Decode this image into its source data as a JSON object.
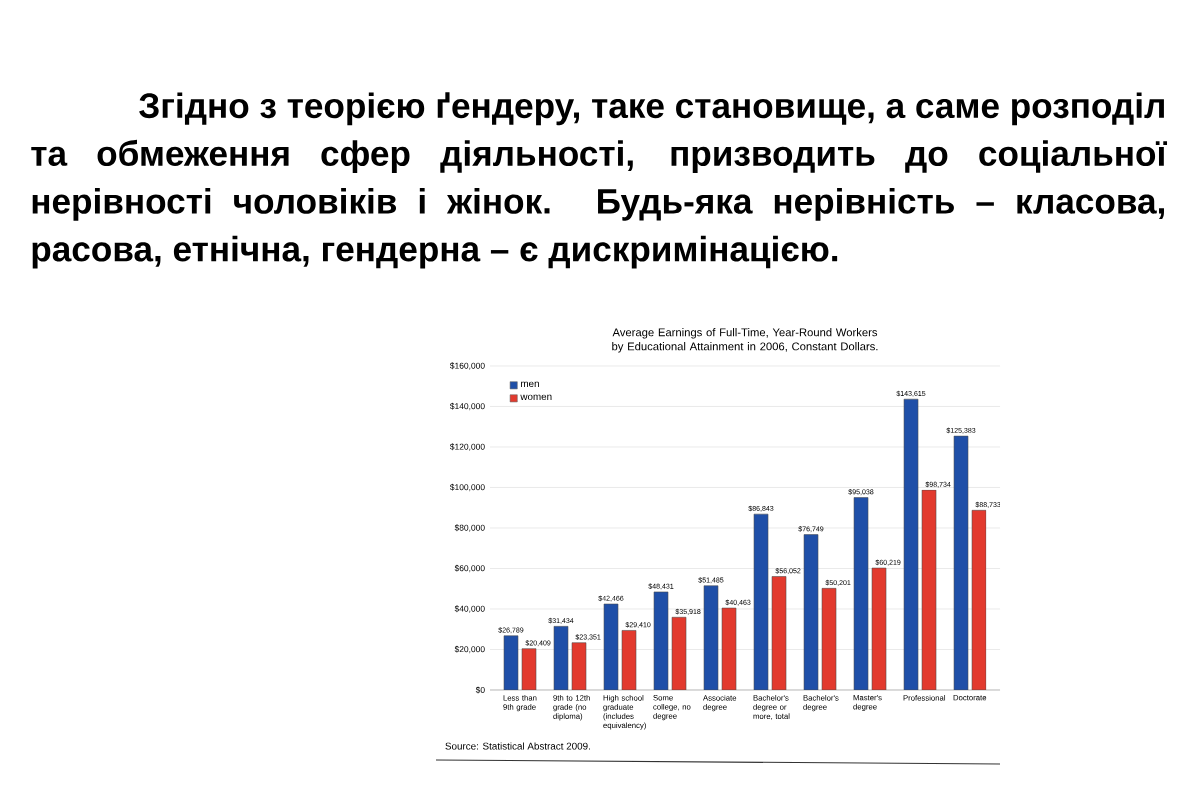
{
  "chart_data": {
    "type": "bar",
    "title": "Average Earnings of Full-Time, Year-Round Workers by Educational Attainment in 2006, Constant Dollars.",
    "categories": [
      "Less than 9th grade",
      "9th to 12th grade (no diploma)",
      "High school graduate (includes equivalency)",
      "Some college, no degree",
      "Associate degree",
      "Bachelor's degree or more, total",
      "Bachelor's degree",
      "Master's degree",
      "Professional",
      "Doctorate"
    ],
    "series": [
      {
        "name": "men",
        "color": "#1f4fa8",
        "values": [
          26789,
          31434,
          42466,
          48431,
          51485,
          86843,
          76749,
          95038,
          143615,
          125383
        ],
        "value_labels": [
          "$26,789",
          "$31,434",
          "$42,466",
          "$48,431",
          "$51,485",
          "$86,843",
          "$76,749",
          "$95,038",
          "$143,615",
          "$125,383"
        ]
      },
      {
        "name": "women",
        "color": "#e23a2e",
        "values": [
          20409,
          23351,
          29410,
          35918,
          40463,
          56052,
          50201,
          60219,
          98734,
          88733
        ],
        "value_labels": [
          "$20,409",
          "$23,351",
          "$29,410",
          "$35,918",
          "$40,463",
          "$56,052",
          "$50,201",
          "$60,219",
          "$98,734",
          "$88,733"
        ]
      }
    ],
    "ylim": [
      0,
      160000
    ],
    "yticks": [
      {
        "value": 0,
        "label": "$0"
      },
      {
        "value": 20000,
        "label": "$20,000"
      },
      {
        "value": 40000,
        "label": "$40,000"
      },
      {
        "value": 60000,
        "label": "$60,000"
      },
      {
        "value": 80000,
        "label": "$80,000"
      },
      {
        "value": 100000,
        "label": "$100,000"
      },
      {
        "value": 120000,
        "label": "$120,000"
      },
      {
        "value": 140000,
        "label": "$140,000"
      },
      {
        "value": 160000,
        "label": "$160,000"
      }
    ],
    "grid": "y",
    "legend": "top left",
    "annotations": [
      "Згідно з теорією ґендеру, таке становище, а саме розподіл та обмеження сфер діяльності, призводить до соціальної нерівності чоловіків і жінок. Будь-яка нерівність – класова, расова, етнічна, гендерна – є дискримінацією.",
      "Source: Statistical Abstract 2009."
    ]
  }
}
